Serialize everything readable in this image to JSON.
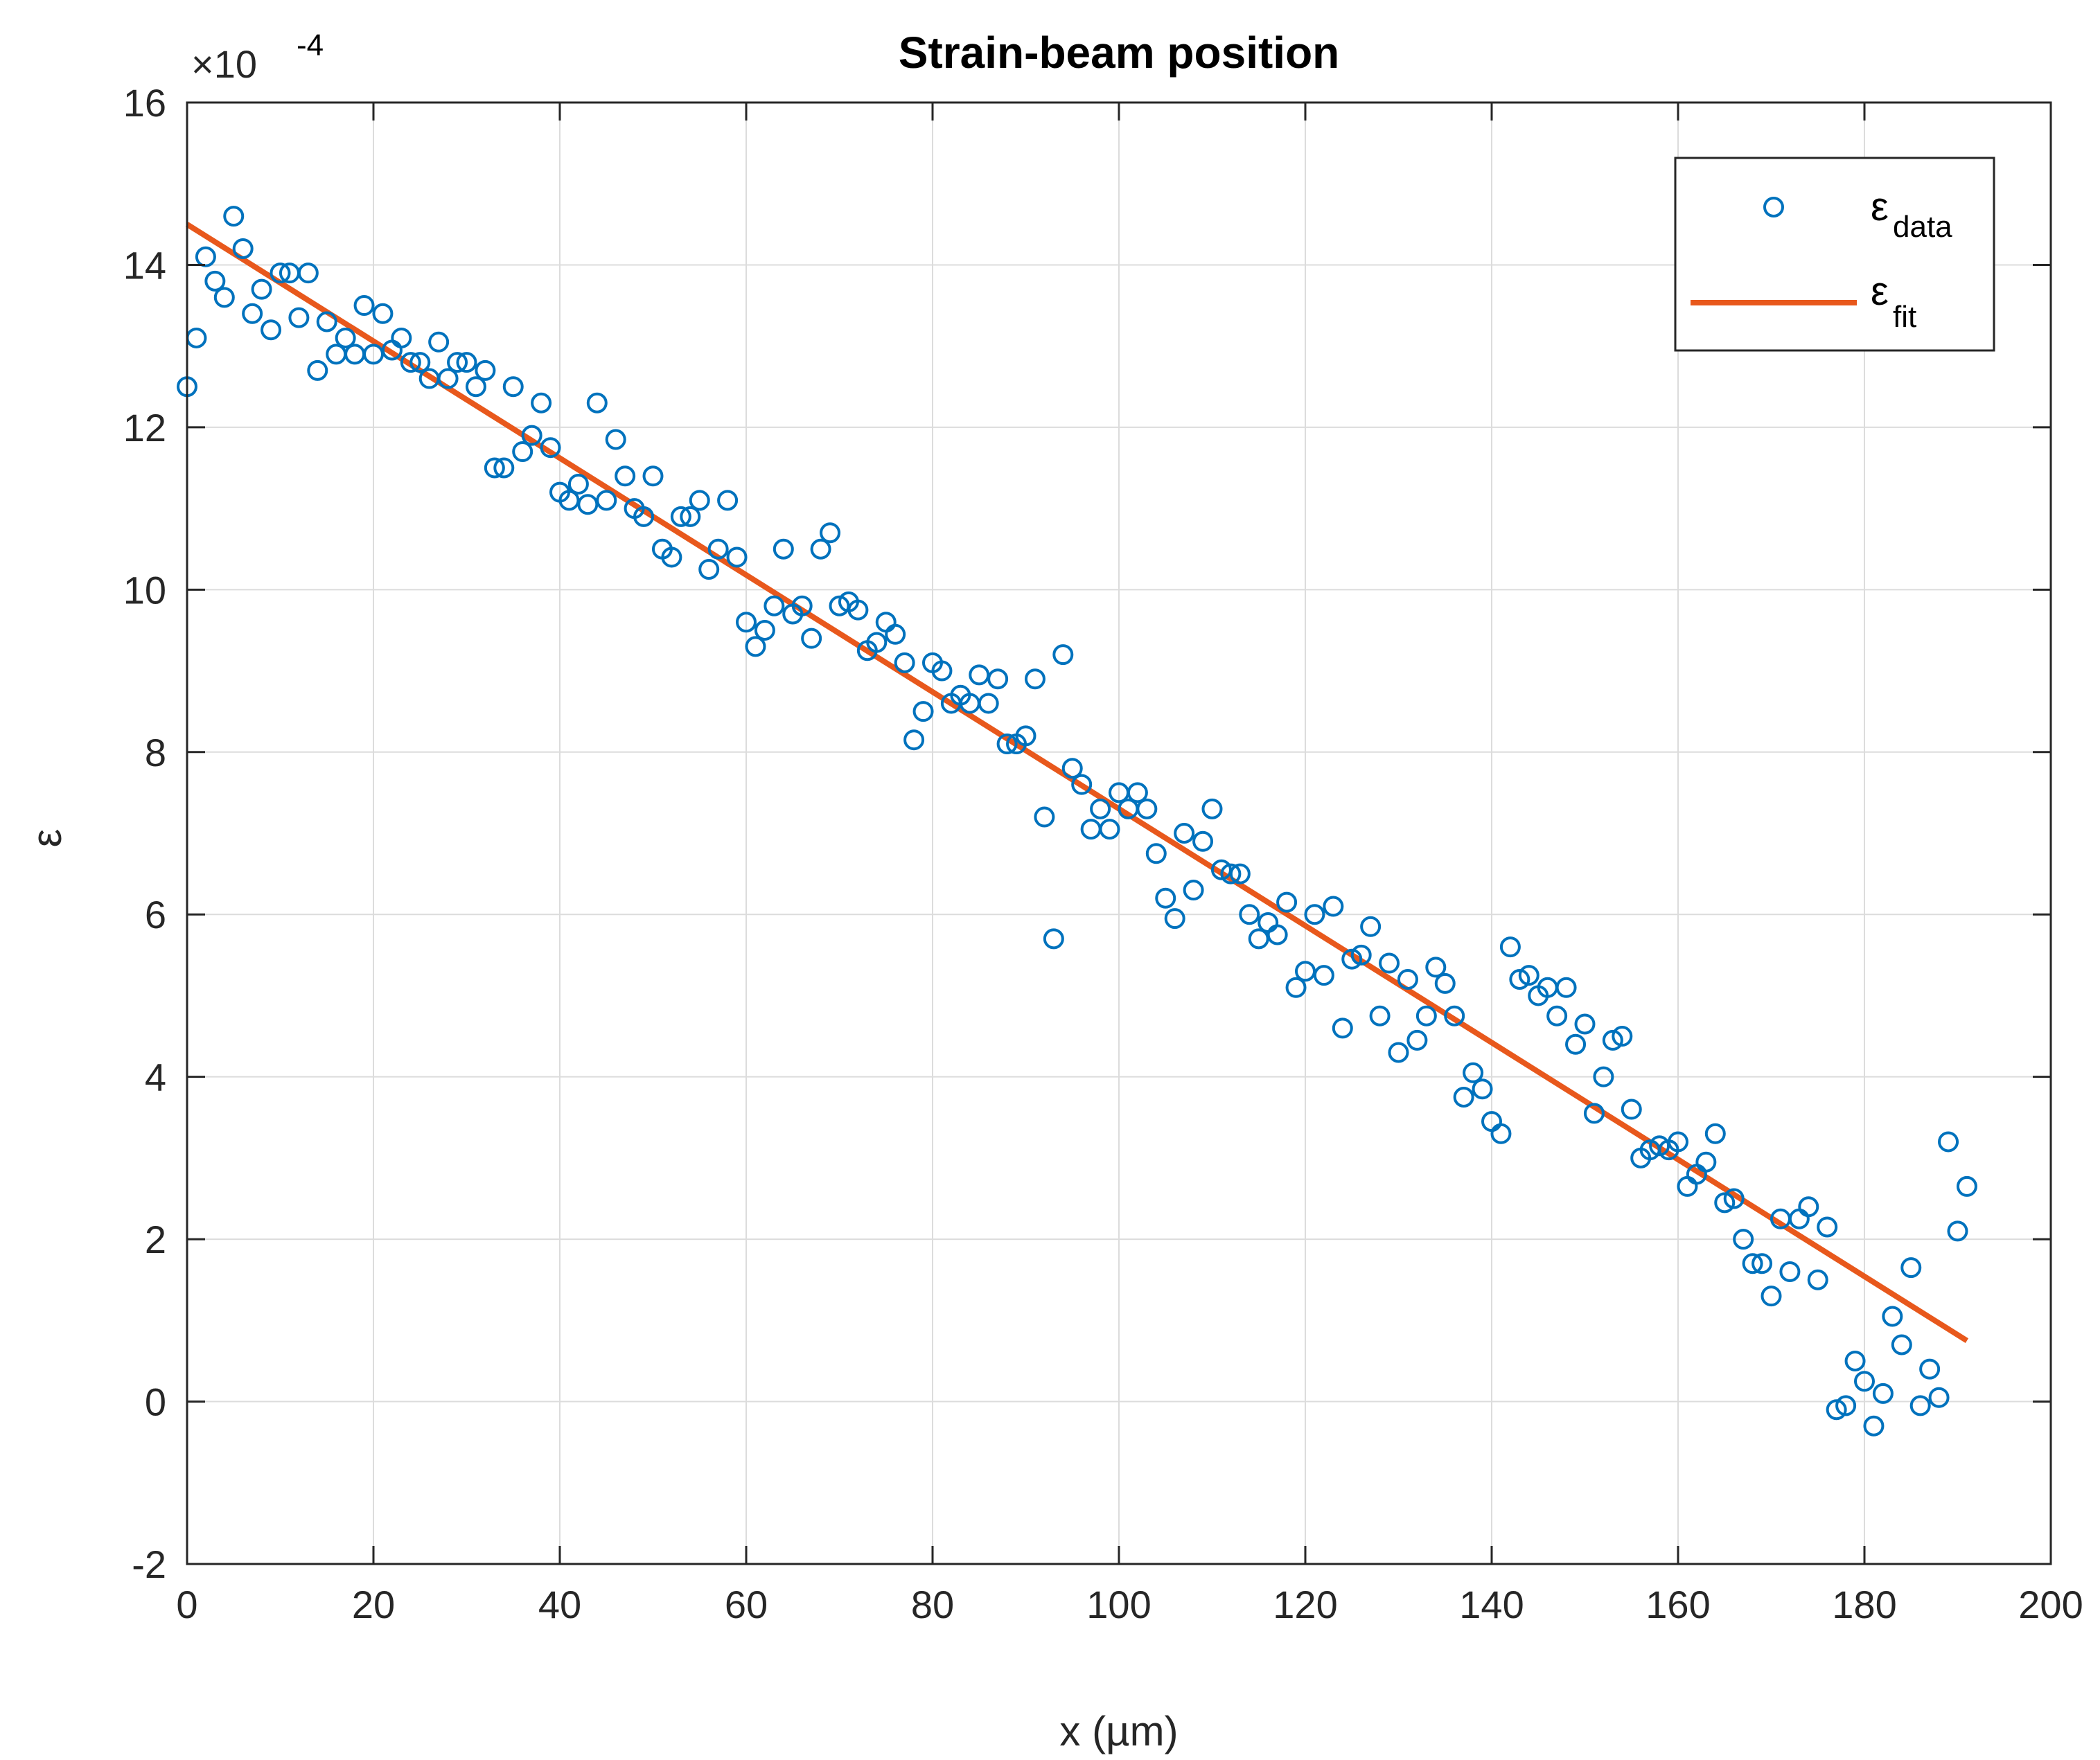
{
  "chart_data": {
    "type": "scatter",
    "title": "Strain-beam position",
    "xlabel": "x (µm)",
    "ylabel": "ε",
    "y_exponent_label": "×10",
    "y_exponent_power": "-4",
    "xlim": [
      0,
      200
    ],
    "ylim": [
      -2,
      16
    ],
    "xticks": [
      0,
      20,
      40,
      60,
      80,
      100,
      120,
      140,
      160,
      180,
      200
    ],
    "yticks": [
      -2,
      0,
      2,
      4,
      6,
      8,
      10,
      12,
      14,
      16
    ],
    "grid": true,
    "legend_position": "top-right",
    "colors": {
      "data": "#0072BD",
      "fit": "#E8581C",
      "grid": "#dcdcdc",
      "axis": "#262626"
    },
    "series": [
      {
        "name": "ε_data",
        "legend_base": "ε",
        "legend_sub": "data",
        "type": "scatter",
        "points": [
          [
            0,
            12.5
          ],
          [
            1,
            13.1
          ],
          [
            2,
            14.1
          ],
          [
            3,
            13.8
          ],
          [
            4,
            13.6
          ],
          [
            5,
            14.6
          ],
          [
            6,
            14.2
          ],
          [
            7,
            13.4
          ],
          [
            8,
            13.7
          ],
          [
            9,
            13.2
          ],
          [
            10,
            13.9
          ],
          [
            11,
            13.9
          ],
          [
            12,
            13.35
          ],
          [
            13,
            13.9
          ],
          [
            14,
            12.7
          ],
          [
            15,
            13.3
          ],
          [
            16,
            12.9
          ],
          [
            17,
            13.1
          ],
          [
            18,
            12.9
          ],
          [
            19,
            13.5
          ],
          [
            20,
            12.9
          ],
          [
            21,
            13.4
          ],
          [
            22,
            12.95
          ],
          [
            23,
            13.1
          ],
          [
            24,
            12.8
          ],
          [
            25,
            12.8
          ],
          [
            26,
            12.6
          ],
          [
            27,
            13.05
          ],
          [
            28,
            12.6
          ],
          [
            29,
            12.8
          ],
          [
            30,
            12.8
          ],
          [
            31,
            12.5
          ],
          [
            32,
            12.7
          ],
          [
            33,
            11.5
          ],
          [
            34,
            11.5
          ],
          [
            35,
            12.5
          ],
          [
            36,
            11.7
          ],
          [
            37,
            11.9
          ],
          [
            38,
            12.3
          ],
          [
            39,
            11.75
          ],
          [
            40,
            11.2
          ],
          [
            41,
            11.1
          ],
          [
            42,
            11.3
          ],
          [
            43,
            11.05
          ],
          [
            44,
            12.3
          ],
          [
            45,
            11.1
          ],
          [
            46,
            11.85
          ],
          [
            47,
            11.4
          ],
          [
            48,
            11.0
          ],
          [
            49,
            10.9
          ],
          [
            50,
            11.4
          ],
          [
            51,
            10.5
          ],
          [
            52,
            10.4
          ],
          [
            53,
            10.9
          ],
          [
            54,
            10.9
          ],
          [
            55,
            11.1
          ],
          [
            56,
            10.25
          ],
          [
            57,
            10.5
          ],
          [
            58,
            11.1
          ],
          [
            59,
            10.4
          ],
          [
            60,
            9.6
          ],
          [
            61,
            9.3
          ],
          [
            62,
            9.5
          ],
          [
            63,
            9.8
          ],
          [
            64,
            10.5
          ],
          [
            65,
            9.7
          ],
          [
            66,
            9.8
          ],
          [
            67,
            9.4
          ],
          [
            68,
            10.5
          ],
          [
            69,
            10.7
          ],
          [
            70,
            9.8
          ],
          [
            71,
            9.85
          ],
          [
            72,
            9.75
          ],
          [
            73,
            9.25
          ],
          [
            74,
            9.35
          ],
          [
            75,
            9.6
          ],
          [
            76,
            9.45
          ],
          [
            77,
            9.1
          ],
          [
            78,
            8.15
          ],
          [
            79,
            8.5
          ],
          [
            80,
            9.1
          ],
          [
            81,
            9.0
          ],
          [
            82,
            8.6
          ],
          [
            83,
            8.7
          ],
          [
            84,
            8.6
          ],
          [
            85,
            8.95
          ],
          [
            86,
            8.6
          ],
          [
            87,
            8.9
          ],
          [
            88,
            8.1
          ],
          [
            89,
            8.1
          ],
          [
            90,
            8.2
          ],
          [
            91,
            8.9
          ],
          [
            92,
            7.2
          ],
          [
            93,
            5.7
          ],
          [
            94,
            9.2
          ],
          [
            95,
            7.8
          ],
          [
            96,
            7.6
          ],
          [
            97,
            7.05
          ],
          [
            98,
            7.3
          ],
          [
            99,
            7.05
          ],
          [
            100,
            7.5
          ],
          [
            101,
            7.3
          ],
          [
            102,
            7.5
          ],
          [
            103,
            7.3
          ],
          [
            104,
            6.75
          ],
          [
            105,
            6.2
          ],
          [
            106,
            5.95
          ],
          [
            107,
            7.0
          ],
          [
            108,
            6.3
          ],
          [
            109,
            6.9
          ],
          [
            110,
            7.3
          ],
          [
            111,
            6.55
          ],
          [
            112,
            6.5
          ],
          [
            113,
            6.5
          ],
          [
            114,
            6.0
          ],
          [
            115,
            5.7
          ],
          [
            116,
            5.9
          ],
          [
            117,
            5.75
          ],
          [
            118,
            6.15
          ],
          [
            119,
            5.1
          ],
          [
            120,
            5.3
          ],
          [
            121,
            6.0
          ],
          [
            122,
            5.25
          ],
          [
            123,
            6.1
          ],
          [
            124,
            4.6
          ],
          [
            125,
            5.45
          ],
          [
            126,
            5.5
          ],
          [
            127,
            5.85
          ],
          [
            128,
            4.75
          ],
          [
            129,
            5.4
          ],
          [
            130,
            4.3
          ],
          [
            131,
            5.2
          ],
          [
            132,
            4.45
          ],
          [
            133,
            4.75
          ],
          [
            134,
            5.35
          ],
          [
            135,
            5.15
          ],
          [
            136,
            4.75
          ],
          [
            137,
            3.75
          ],
          [
            138,
            4.05
          ],
          [
            139,
            3.85
          ],
          [
            140,
            3.45
          ],
          [
            141,
            3.3
          ],
          [
            142,
            5.6
          ],
          [
            143,
            5.2
          ],
          [
            144,
            5.25
          ],
          [
            145,
            5.0
          ],
          [
            146,
            5.1
          ],
          [
            147,
            4.75
          ],
          [
            148,
            5.1
          ],
          [
            149,
            4.4
          ],
          [
            150,
            4.65
          ],
          [
            151,
            3.55
          ],
          [
            152,
            4.0
          ],
          [
            153,
            4.45
          ],
          [
            154,
            4.5
          ],
          [
            155,
            3.6
          ],
          [
            156,
            3.0
          ],
          [
            157,
            3.1
          ],
          [
            158,
            3.15
          ],
          [
            159,
            3.1
          ],
          [
            160,
            3.2
          ],
          [
            161,
            2.65
          ],
          [
            162,
            2.8
          ],
          [
            163,
            2.95
          ],
          [
            164,
            3.3
          ],
          [
            165,
            2.45
          ],
          [
            166,
            2.5
          ],
          [
            167,
            2.0
          ],
          [
            168,
            1.7
          ],
          [
            169,
            1.7
          ],
          [
            170,
            1.3
          ],
          [
            171,
            2.25
          ],
          [
            172,
            1.6
          ],
          [
            173,
            2.25
          ],
          [
            174,
            2.4
          ],
          [
            175,
            1.5
          ],
          [
            176,
            2.15
          ],
          [
            177,
            -0.1
          ],
          [
            178,
            -0.05
          ],
          [
            179,
            0.5
          ],
          [
            180,
            0.25
          ],
          [
            181,
            -0.3
          ],
          [
            182,
            0.1
          ],
          [
            183,
            1.05
          ],
          [
            184,
            0.7
          ],
          [
            185,
            1.65
          ],
          [
            186,
            -0.05
          ],
          [
            187,
            0.4
          ],
          [
            188,
            0.05
          ],
          [
            189,
            3.2
          ],
          [
            190,
            2.1
          ],
          [
            191,
            2.65
          ]
        ]
      },
      {
        "name": "ε_fit",
        "legend_base": "ε",
        "legend_sub": "fit",
        "type": "line",
        "points": [
          [
            0,
            14.5
          ],
          [
            191,
            0.75
          ]
        ]
      }
    ]
  }
}
